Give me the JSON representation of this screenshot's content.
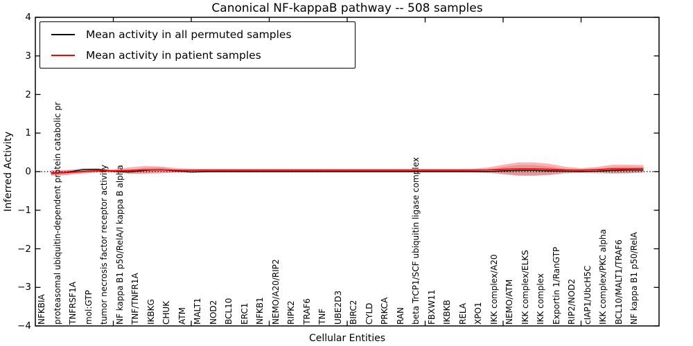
{
  "figure": {
    "background": "#ffffff"
  },
  "legend": {
    "entries": [
      {
        "label": "Mean activity in all permuted samples",
        "color": "#000000"
      },
      {
        "label": "Mean activity in patient samples",
        "color": "#ff0000"
      }
    ]
  },
  "chart_data": {
    "type": "line",
    "title": "Canonical NF-kappaB pathway -- 508 samples",
    "xlabel": "Cellular Entities",
    "ylabel": "Inferred Activity",
    "ylim": [
      -4,
      4
    ],
    "xlim": [
      0,
      40
    ],
    "grid": false,
    "zero_line_dotted": true,
    "legend_position": "upper left",
    "y_tick_values": [
      4,
      3,
      2,
      1,
      0,
      -1,
      -2,
      -3,
      -4
    ],
    "y_tick_labels": [
      "4",
      "3",
      "2",
      "1",
      "0",
      "−1",
      "−2",
      "−3",
      "−4"
    ],
    "x_major_tick_values": [
      5,
      10,
      15,
      20,
      25,
      30,
      35
    ],
    "categories": [
      "NFKBIA",
      "proteasomal ubiquitin-dependent protein catabolic pr",
      "TNFRSF1A",
      "mol:GTP",
      "tumor necrosis factor receptor activity",
      "NF kappa B1 p50/RelA/I kappa B alpha",
      "TNF/TNFR1A",
      "IKBKG",
      "CHUK",
      "ATM",
      "MALT1",
      "NOD2",
      "BCL10",
      "ERC1",
      "NFKB1",
      "NEMO/A20/RIP2",
      "RIPK2",
      "TRAF6",
      "TNF",
      "UBE2D3",
      "BIRC2",
      "CYLD",
      "PRKCA",
      "RAN",
      "beta TrCP1/SCF ubiquitin ligase complex",
      "FBXW11",
      "IKBKB",
      "RELA",
      "XPO1",
      "IKK complex/A20",
      "NEMO/ATM",
      "IKK complex/ELKS",
      "IKK complex",
      "Exportin 1/RanGTP",
      "RIP2/NOD2",
      "cIAP1/UbcH5C",
      "IKK complex/PKC alpha",
      "BCL10/MALT1/TRAF6",
      "NF kappa B1 p50/RelA"
    ],
    "series": [
      {
        "name": "Mean activity in all permuted samples",
        "color": "#000000",
        "line_width": 1.4,
        "values": [
          -0.045,
          -0.02,
          0.05,
          0.06,
          0.01,
          -0.01,
          0.03,
          0.05,
          0.02,
          -0.01,
          0,
          0,
          0,
          0,
          0,
          0,
          0,
          0,
          0,
          0,
          0,
          0,
          0,
          0,
          0,
          0,
          0,
          0,
          0,
          0.02,
          0.03,
          0.03,
          0.02,
          0.01,
          0,
          0.01,
          0.03,
          0.04,
          0.04
        ]
      },
      {
        "name": "Mean activity in patient samples",
        "color": "#ff0000",
        "line_width": 1.8,
        "values": [
          -0.035,
          -0.025,
          0,
          0.02,
          0.02,
          0.03,
          0.045,
          0.045,
          0.035,
          0.035,
          0.04,
          0.04,
          0.04,
          0.04,
          0.04,
          0.04,
          0.04,
          0.04,
          0.04,
          0.04,
          0.04,
          0.04,
          0.04,
          0.04,
          0.04,
          0.04,
          0.04,
          0.04,
          0.045,
          0.06,
          0.07,
          0.07,
          0.06,
          0.045,
          0.04,
          0.05,
          0.07,
          0.07,
          0.08
        ]
      }
    ],
    "bands": [
      {
        "name": "permuted-samples-spread",
        "center_series": 0,
        "color": "rgba(128,128,128,0.30)",
        "halfwidths": [
          0.05,
          0.05,
          0.04,
          0.03,
          0.03,
          0.05,
          0.07,
          0.06,
          0.04,
          0.03,
          0.02,
          0.02,
          0.02,
          0.02,
          0.02,
          0.02,
          0.02,
          0.02,
          0.02,
          0.02,
          0.02,
          0.02,
          0.02,
          0.02,
          0.02,
          0.02,
          0.02,
          0.02,
          0.04,
          0.1,
          0.14,
          0.14,
          0.11,
          0.06,
          0.04,
          0.06,
          0.09,
          0.09,
          0.07
        ]
      },
      {
        "name": "patient-samples-spread",
        "center_series": 1,
        "color": "rgba(255,0,0,0.30)",
        "halfwidths": [
          0.07,
          0.07,
          0.05,
          0.04,
          0.04,
          0.08,
          0.1,
          0.09,
          0.06,
          0.04,
          0.03,
          0.03,
          0.03,
          0.03,
          0.03,
          0.03,
          0.03,
          0.03,
          0.03,
          0.03,
          0.03,
          0.03,
          0.03,
          0.03,
          0.03,
          0.03,
          0.03,
          0.035,
          0.06,
          0.12,
          0.17,
          0.17,
          0.14,
          0.08,
          0.05,
          0.07,
          0.11,
          0.11,
          0.09
        ]
      }
    ]
  }
}
